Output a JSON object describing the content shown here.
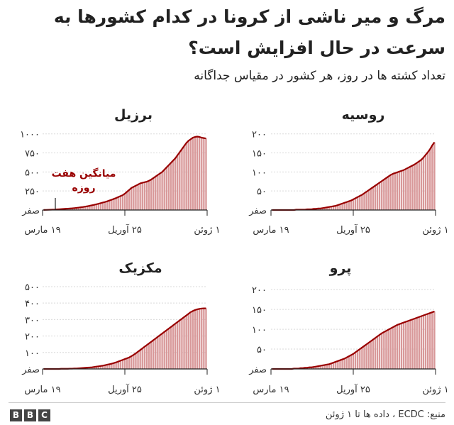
{
  "title": "مرگ و میر ناشی از کرونا در کدام کشورها به سرعت در حال افزایش است؟",
  "subtitle": "تعداد کشته ها در روز، هر کشور در مقیاس جداگانه",
  "footer": {
    "source": "منبع: ECDC ، داده ها تا ۱ ژوئن",
    "logo": [
      "B",
      "B",
      "C"
    ]
  },
  "colors": {
    "bar": "#d89899",
    "line": "#990000",
    "axis": "#222222",
    "grid": "#d9d9d9"
  },
  "chart_data": [
    {
      "type": "bar",
      "name": "برزیل",
      "title": "برزیل",
      "x_ticks": [
        "۱۹ مارس",
        "۲۵ آوریل",
        "۱ ژوئن"
      ],
      "x_range": [
        0,
        74
      ],
      "x_tick_positions": [
        0,
        37,
        74
      ],
      "y_ticks": [
        "صفر",
        "۲۵۰",
        "۵۰۰",
        "۷۵۰",
        "۱۰۰۰"
      ],
      "y_tick_values": [
        0,
        250,
        500,
        750,
        1000
      ],
      "ylim": [
        0,
        1100
      ],
      "annotation": {
        "text": [
          "میانگین هفت",
          "روزه"
        ]
      },
      "series": [
        {
          "kind": "bars",
          "values": [
            1,
            2,
            3,
            4,
            5,
            6,
            8,
            10,
            12,
            14,
            16,
            18,
            20,
            22,
            25,
            28,
            32,
            36,
            40,
            45,
            50,
            56,
            62,
            68,
            75,
            82,
            90,
            98,
            106,
            115,
            125,
            135,
            146,
            157,
            170,
            183,
            195,
            215,
            240,
            265,
            290,
            305,
            320,
            335,
            350,
            358,
            365,
            372,
            385,
            400,
            420,
            440,
            460,
            480,
            500,
            530,
            560,
            590,
            620,
            650,
            680,
            720,
            760,
            800,
            840,
            880,
            910,
            930,
            950,
            960,
            965,
            960,
            950,
            945,
            940
          ]
        },
        {
          "kind": "line",
          "values": [
            1,
            2,
            3,
            4,
            5,
            6,
            8,
            10,
            12,
            14,
            16,
            18,
            20,
            22,
            25,
            28,
            32,
            36,
            40,
            45,
            50,
            56,
            62,
            68,
            75,
            82,
            90,
            98,
            106,
            115,
            125,
            135,
            146,
            157,
            170,
            183,
            195,
            215,
            240,
            265,
            290,
            305,
            320,
            335,
            350,
            358,
            365,
            372,
            385,
            400,
            420,
            440,
            460,
            480,
            500,
            530,
            560,
            590,
            620,
            650,
            680,
            720,
            760,
            800,
            840,
            880,
            910,
            930,
            950,
            960,
            965,
            960,
            950,
            945,
            940
          ]
        }
      ]
    },
    {
      "type": "bar",
      "name": "روسیه",
      "title": "روسیه",
      "x_ticks": [
        "۱۹ مارس",
        "۲۵ آوریل",
        "۱ ژوئن"
      ],
      "x_range": [
        0,
        74
      ],
      "x_tick_positions": [
        0,
        37,
        74
      ],
      "y_ticks": [
        "صفر",
        "۵۰",
        "۱۰۰",
        "۱۵۰",
        "۲۰۰"
      ],
      "y_tick_values": [
        0,
        50,
        100,
        150,
        200
      ],
      "ylim": [
        0,
        220
      ],
      "series": [
        {
          "kind": "bars",
          "values": [
            0,
            0,
            0,
            0,
            0,
            0,
            0,
            0,
            0,
            0,
            0,
            1,
            1,
            1,
            1,
            1,
            2,
            2,
            2,
            3,
            3,
            4,
            4,
            5,
            6,
            7,
            8,
            9,
            10,
            11,
            13,
            15,
            17,
            19,
            21,
            23,
            25,
            28,
            31,
            34,
            37,
            40,
            44,
            48,
            52,
            56,
            60,
            64,
            68,
            72,
            76,
            80,
            84,
            88,
            92,
            95,
            97,
            99,
            101,
            103,
            105,
            108,
            111,
            114,
            117,
            120,
            124,
            128,
            132,
            138,
            145,
            152,
            160,
            170,
            178
          ]
        },
        {
          "kind": "line",
          "values": [
            0,
            0,
            0,
            0,
            0,
            0,
            0,
            0,
            0,
            0,
            0,
            1,
            1,
            1,
            1,
            1,
            2,
            2,
            2,
            3,
            3,
            4,
            4,
            5,
            6,
            7,
            8,
            9,
            10,
            11,
            13,
            15,
            17,
            19,
            21,
            23,
            25,
            28,
            31,
            34,
            37,
            40,
            44,
            48,
            52,
            56,
            60,
            64,
            68,
            72,
            76,
            80,
            84,
            88,
            92,
            95,
            97,
            99,
            101,
            103,
            105,
            108,
            111,
            114,
            117,
            120,
            124,
            128,
            132,
            138,
            145,
            152,
            160,
            170,
            178
          ]
        }
      ]
    },
    {
      "type": "bar",
      "name": "مکزیک",
      "title": "مکزیک",
      "x_ticks": [
        "۱۹ مارس",
        "۲۵ آوریل",
        "۱ ژوئن"
      ],
      "x_range": [
        0,
        74
      ],
      "x_tick_positions": [
        0,
        37,
        74
      ],
      "y_ticks": [
        "صفر",
        "۱۰۰",
        "۲۰۰",
        "۳۰۰",
        "۴۰۰",
        "۵۰۰"
      ],
      "y_tick_values": [
        0,
        100,
        200,
        300,
        400,
        500
      ],
      "ylim": [
        0,
        530
      ],
      "series": [
        {
          "kind": "bars",
          "values": [
            0,
            0,
            0,
            0,
            0,
            0,
            0,
            0,
            1,
            1,
            1,
            1,
            2,
            2,
            3,
            3,
            4,
            5,
            6,
            7,
            8,
            9,
            10,
            12,
            14,
            16,
            18,
            20,
            23,
            26,
            29,
            32,
            36,
            40,
            45,
            50,
            55,
            60,
            65,
            70,
            78,
            86,
            95,
            105,
            115,
            125,
            135,
            145,
            155,
            165,
            175,
            185,
            195,
            205,
            215,
            225,
            235,
            245,
            255,
            265,
            275,
            285,
            295,
            305,
            315,
            325,
            335,
            345,
            352,
            358,
            362,
            365,
            367,
            368,
            368
          ]
        },
        {
          "kind": "line",
          "values": [
            0,
            0,
            0,
            0,
            0,
            0,
            0,
            0,
            1,
            1,
            1,
            1,
            2,
            2,
            3,
            3,
            4,
            5,
            6,
            7,
            8,
            9,
            10,
            12,
            14,
            16,
            18,
            20,
            23,
            26,
            29,
            32,
            36,
            40,
            45,
            50,
            55,
            60,
            65,
            70,
            78,
            86,
            95,
            105,
            115,
            125,
            135,
            145,
            155,
            165,
            175,
            185,
            195,
            205,
            215,
            225,
            235,
            245,
            255,
            265,
            275,
            285,
            295,
            305,
            315,
            325,
            335,
            345,
            352,
            358,
            362,
            365,
            367,
            368,
            368
          ]
        }
      ]
    },
    {
      "type": "bar",
      "name": "پرو",
      "title": "پرو",
      "x_ticks": [
        "۱۹ مارس",
        "۲۵ آوریل",
        "۱ ژوئن"
      ],
      "x_range": [
        0,
        74
      ],
      "x_tick_positions": [
        0,
        37,
        74
      ],
      "y_ticks": [
        "صفر",
        "۵۰",
        "۱۰۰",
        "۱۵۰",
        "۲۰۰"
      ],
      "y_tick_values": [
        0,
        50,
        100,
        150,
        200
      ],
      "ylim": [
        0,
        220
      ],
      "series": [
        {
          "kind": "bars",
          "values": [
            0,
            0,
            0,
            0,
            0,
            0,
            0,
            0,
            0,
            0,
            1,
            1,
            1,
            2,
            2,
            3,
            3,
            4,
            4,
            5,
            6,
            7,
            8,
            9,
            10,
            11,
            12,
            14,
            16,
            18,
            20,
            22,
            24,
            26,
            29,
            32,
            35,
            38,
            42,
            46,
            50,
            54,
            58,
            62,
            66,
            70,
            74,
            78,
            82,
            86,
            90,
            93,
            96,
            99,
            102,
            105,
            108,
            111,
            113,
            115,
            117,
            119,
            121,
            123,
            125,
            127,
            129,
            131,
            133,
            135,
            137,
            139,
            141,
            143,
            145
          ]
        },
        {
          "kind": "line",
          "values": [
            0,
            0,
            0,
            0,
            0,
            0,
            0,
            0,
            0,
            0,
            1,
            1,
            1,
            2,
            2,
            3,
            3,
            4,
            4,
            5,
            6,
            7,
            8,
            9,
            10,
            11,
            12,
            14,
            16,
            18,
            20,
            22,
            24,
            26,
            29,
            32,
            35,
            38,
            42,
            46,
            50,
            54,
            58,
            62,
            66,
            70,
            74,
            78,
            82,
            86,
            90,
            93,
            96,
            99,
            102,
            105,
            108,
            111,
            113,
            115,
            117,
            119,
            121,
            123,
            125,
            127,
            129,
            131,
            133,
            135,
            137,
            139,
            141,
            143,
            145
          ]
        }
      ]
    }
  ]
}
